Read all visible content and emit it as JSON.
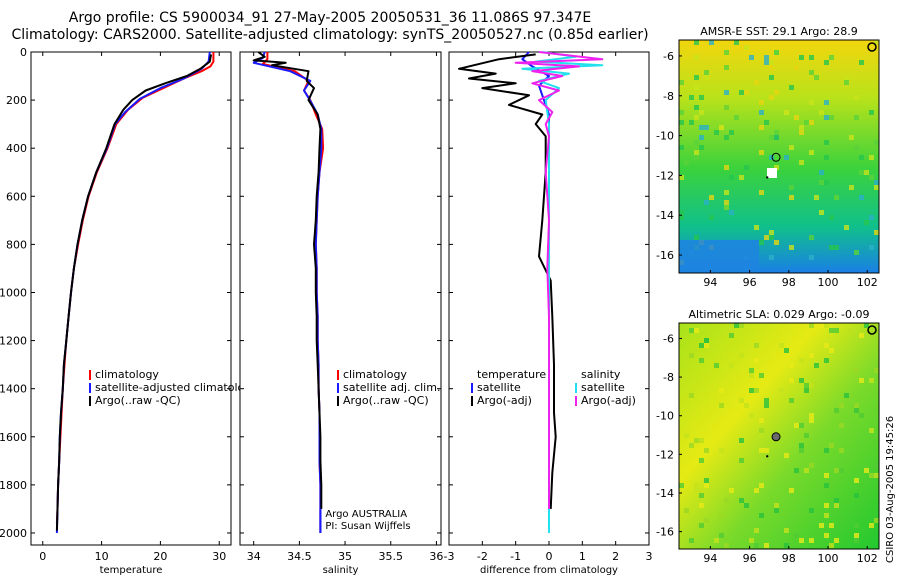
{
  "header": {
    "line1": "Argo profile: CS 5900034_91 27-May-2005 20050531_36 11.086S 97.347E",
    "line2": "Climatology: CARS2000. Satellite-adjusted climatology: synTS_20050527.nc (0.85d earlier)"
  },
  "colors": {
    "climatology": "#ff0000",
    "satellite": "#1a1aff",
    "argo": "#000000",
    "sal_sat": "#22e0ee",
    "sal_argo": "#ee22ee"
  },
  "chart_data": [
    {
      "id": "temperature",
      "type": "line",
      "xlabel": "temperature",
      "ylabel": "",
      "xlim": [
        -2,
        32
      ],
      "ylim": [
        2050,
        0
      ],
      "xticks": [
        0,
        10,
        20,
        30
      ],
      "yticks": [
        0,
        200,
        400,
        600,
        800,
        1000,
        1200,
        1400,
        1600,
        1800,
        2000
      ],
      "legend": [
        "climatology",
        "satellite-adjusted climatology",
        "Argo(..raw -QC)"
      ],
      "series": [
        {
          "name": "climatology",
          "color": "#ff0000",
          "points": [
            [
              29.0,
              0
            ],
            [
              29.0,
              40
            ],
            [
              28.5,
              60
            ],
            [
              27.0,
              80
            ],
            [
              24.0,
              110
            ],
            [
              20.5,
              150
            ],
            [
              17.0,
              190
            ],
            [
              14.5,
              240
            ],
            [
              12.5,
              300
            ],
            [
              11.0,
              400
            ],
            [
              9.2,
              500
            ],
            [
              7.8,
              600
            ],
            [
              6.8,
              700
            ],
            [
              6.0,
              800
            ],
            [
              5.3,
              900
            ],
            [
              4.8,
              1000
            ],
            [
              4.4,
              1100
            ],
            [
              4.0,
              1200
            ],
            [
              3.7,
              1300
            ],
            [
              3.4,
              1400
            ],
            [
              3.2,
              1500
            ],
            [
              3.0,
              1600
            ],
            [
              2.8,
              1700
            ],
            [
              2.6,
              1800
            ],
            [
              2.5,
              1900
            ],
            [
              2.4,
              1960
            ]
          ]
        },
        {
          "name": "satellite",
          "color": "#1a1aff",
          "points": [
            [
              28.4,
              0
            ],
            [
              28.2,
              40
            ],
            [
              27.0,
              70
            ],
            [
              24.0,
              110
            ],
            [
              20.0,
              150
            ],
            [
              16.5,
              195
            ],
            [
              14.0,
              250
            ],
            [
              12.3,
              300
            ],
            [
              10.9,
              400
            ],
            [
              9.1,
              500
            ],
            [
              7.7,
              600
            ],
            [
              6.7,
              700
            ],
            [
              5.9,
              800
            ],
            [
              5.3,
              900
            ],
            [
              4.8,
              1000
            ],
            [
              4.4,
              1100
            ],
            [
              4.0,
              1200
            ],
            [
              3.6,
              1300
            ],
            [
              3.4,
              1400
            ],
            [
              3.1,
              1500
            ],
            [
              2.9,
              1600
            ],
            [
              2.8,
              1700
            ],
            [
              2.6,
              1800
            ],
            [
              2.5,
              1900
            ],
            [
              2.4,
              2000
            ]
          ]
        },
        {
          "name": "argo",
          "color": "#000000",
          "points": [
            [
              28.6,
              10
            ],
            [
              28.4,
              40
            ],
            [
              26.8,
              70
            ],
            [
              24.5,
              100
            ],
            [
              20.8,
              130
            ],
            [
              17.5,
              160
            ],
            [
              15.2,
              200
            ],
            [
              13.7,
              240
            ],
            [
              12.2,
              300
            ],
            [
              10.8,
              400
            ],
            [
              9.1,
              500
            ],
            [
              7.7,
              600
            ],
            [
              6.7,
              700
            ],
            [
              5.9,
              800
            ],
            [
              5.3,
              900
            ],
            [
              4.8,
              1000
            ],
            [
              4.4,
              1100
            ],
            [
              4.0,
              1200
            ],
            [
              3.6,
              1300
            ],
            [
              3.4,
              1400
            ],
            [
              3.1,
              1500
            ],
            [
              2.9,
              1600
            ],
            [
              2.8,
              1700
            ],
            [
              2.6,
              1800
            ],
            [
              2.5,
              1900
            ],
            [
              2.4,
              1990
            ]
          ]
        }
      ]
    },
    {
      "id": "salinity",
      "type": "line",
      "xlabel": "salinity",
      "xlim": [
        33.85,
        36.05
      ],
      "ylim": [
        2050,
        0
      ],
      "xticks": [
        34,
        34.5,
        35,
        35.5,
        36
      ],
      "legend": [
        "climatology",
        "satellite adj. clim.",
        "Argo(..raw -QC)"
      ],
      "annotations": [
        "Argo AUSTRALIA",
        "PI: Susan Wijffels"
      ],
      "series": [
        {
          "name": "climatology",
          "color": "#ff0000",
          "points": [
            [
              34.15,
              0
            ],
            [
              34.15,
              30
            ],
            [
              34.1,
              50
            ],
            [
              34.45,
              80
            ],
            [
              34.6,
              120
            ],
            [
              34.55,
              160
            ],
            [
              34.62,
              200
            ],
            [
              34.68,
              260
            ],
            [
              34.75,
              320
            ],
            [
              34.76,
              400
            ],
            [
              34.72,
              500
            ],
            [
              34.7,
              600
            ],
            [
              34.69,
              700
            ],
            [
              34.68,
              800
            ],
            [
              34.69,
              900
            ],
            [
              34.69,
              1000
            ],
            [
              34.7,
              1100
            ],
            [
              34.7,
              1200
            ],
            [
              34.71,
              1300
            ],
            [
              34.71,
              1400
            ],
            [
              34.72,
              1500
            ],
            [
              34.72,
              1600
            ],
            [
              34.72,
              1700
            ],
            [
              34.73,
              1800
            ],
            [
              34.73,
              1900
            ],
            [
              34.73,
              2000
            ]
          ]
        },
        {
          "name": "satellite",
          "color": "#1a1aff",
          "points": [
            [
              34.12,
              0
            ],
            [
              34.1,
              25
            ],
            [
              34.0,
              45
            ],
            [
              34.4,
              80
            ],
            [
              34.62,
              120
            ],
            [
              34.55,
              160
            ],
            [
              34.63,
              210
            ],
            [
              34.7,
              260
            ],
            [
              34.74,
              320
            ],
            [
              34.74,
              400
            ],
            [
              34.72,
              500
            ],
            [
              34.7,
              600
            ],
            [
              34.69,
              700
            ],
            [
              34.68,
              800
            ],
            [
              34.69,
              900
            ],
            [
              34.69,
              1000
            ],
            [
              34.7,
              1100
            ],
            [
              34.7,
              1200
            ],
            [
              34.71,
              1300
            ],
            [
              34.71,
              1400
            ],
            [
              34.72,
              1500
            ],
            [
              34.72,
              1600
            ],
            [
              34.72,
              1700
            ],
            [
              34.73,
              1800
            ],
            [
              34.73,
              1900
            ],
            [
              34.73,
              2000
            ]
          ]
        },
        {
          "name": "argo",
          "color": "#000000",
          "points": [
            [
              34.05,
              0
            ],
            [
              34.12,
              20
            ],
            [
              34.0,
              35
            ],
            [
              34.35,
              45
            ],
            [
              34.2,
              55
            ],
            [
              34.6,
              80
            ],
            [
              34.58,
              120
            ],
            [
              34.66,
              150
            ],
            [
              34.6,
              200
            ],
            [
              34.7,
              260
            ],
            [
              34.73,
              320
            ],
            [
              34.72,
              400
            ],
            [
              34.71,
              500
            ],
            [
              34.69,
              600
            ],
            [
              34.68,
              700
            ],
            [
              34.66,
              800
            ],
            [
              34.68,
              900
            ],
            [
              34.68,
              1000
            ],
            [
              34.69,
              1100
            ],
            [
              34.69,
              1200
            ],
            [
              34.7,
              1300
            ],
            [
              34.71,
              1400
            ],
            [
              34.72,
              1500
            ],
            [
              34.73,
              1600
            ],
            [
              34.73,
              1700
            ],
            [
              34.74,
              1800
            ],
            [
              34.74,
              1900
            ]
          ]
        }
      ]
    },
    {
      "id": "difference",
      "type": "line",
      "xlabel": "difference from climatology",
      "xlim": [
        -3,
        3
      ],
      "ylim": [
        2050,
        0
      ],
      "xticks": [
        -3,
        -2,
        -1,
        0,
        1,
        2,
        3
      ],
      "legend": [
        "temperature",
        "satellite",
        "Argo(-adj)",
        "salinity",
        "satellite",
        "Argo(-adj)"
      ],
      "series": [
        {
          "name": "temperature satellite",
          "color": "#1a1aff",
          "points": [
            [
              -0.6,
              0
            ],
            [
              -0.8,
              30
            ],
            [
              -0.5,
              60
            ],
            [
              0.0,
              100
            ],
            [
              -0.3,
              140
            ],
            [
              -0.2,
              180
            ],
            [
              0.0,
              260
            ],
            [
              0.0,
              400
            ],
            [
              0.0,
              600
            ],
            [
              0.0,
              800
            ],
            [
              0.0,
              1000
            ],
            [
              0.0,
              1200
            ],
            [
              0.0,
              1400
            ],
            [
              0.0,
              1600
            ],
            [
              0.0,
              1800
            ],
            [
              0.0,
              2000
            ]
          ]
        },
        {
          "name": "temperature Argo",
          "color": "#000000",
          "points": [
            [
              -0.4,
              10
            ],
            [
              -1.5,
              30
            ],
            [
              -2.7,
              70
            ],
            [
              -1.6,
              90
            ],
            [
              -2.4,
              110
            ],
            [
              -1.0,
              130
            ],
            [
              -2.0,
              150
            ],
            [
              -0.6,
              180
            ],
            [
              -1.2,
              220
            ],
            [
              -0.2,
              260
            ],
            [
              -0.4,
              300
            ],
            [
              -0.1,
              350
            ],
            [
              -0.1,
              500
            ],
            [
              -0.2,
              700
            ],
            [
              -0.3,
              850
            ],
            [
              0.05,
              950
            ],
            [
              0.1,
              1100
            ],
            [
              0.15,
              1300
            ],
            [
              0.15,
              1500
            ],
            [
              0.2,
              1600
            ],
            [
              0.1,
              1750
            ],
            [
              0.05,
              1900
            ]
          ]
        },
        {
          "name": "salinity satellite",
          "color": "#22e0ee",
          "points": [
            [
              -0.2,
              0
            ],
            [
              0.8,
              20
            ],
            [
              -0.4,
              40
            ],
            [
              1.6,
              55
            ],
            [
              -0.8,
              70
            ],
            [
              0.6,
              90
            ],
            [
              -0.3,
              120
            ],
            [
              0.3,
              150
            ],
            [
              -0.1,
              200
            ],
            [
              0.0,
              300
            ],
            [
              0.0,
              600
            ],
            [
              0.0,
              1000
            ],
            [
              0.0,
              1400
            ],
            [
              0.0,
              1800
            ],
            [
              0.0,
              2000
            ]
          ]
        },
        {
          "name": "salinity Argo",
          "color": "#ee22ee",
          "points": [
            [
              -0.3,
              0
            ],
            [
              1.6,
              30
            ],
            [
              -1.0,
              45
            ],
            [
              0.9,
              60
            ],
            [
              -0.5,
              80
            ],
            [
              0.4,
              100
            ],
            [
              -0.5,
              130
            ],
            [
              0.3,
              160
            ],
            [
              -0.3,
              200
            ],
            [
              0.1,
              250
            ],
            [
              -0.1,
              300
            ],
            [
              0.0,
              350
            ],
            [
              -0.1,
              500
            ],
            [
              0.0,
              700
            ],
            [
              -0.05,
              900
            ],
            [
              0.0,
              1100
            ],
            [
              0.0,
              1500
            ],
            [
              0.0,
              1900
            ]
          ]
        }
      ]
    }
  ],
  "maps": [
    {
      "id": "sst-map",
      "title": "AMSR-E SST: 29.1 Argo: 28.9",
      "xticks": [
        "94",
        "96",
        "98",
        "100",
        "102"
      ],
      "yticks": [
        "-6",
        "-8",
        "-10",
        "-12",
        "-14",
        "-16"
      ],
      "xlim": [
        92.4,
        102.6
      ],
      "ylim": [
        -16.9,
        -5.2
      ],
      "float": [
        97.35,
        -11.09
      ]
    },
    {
      "id": "sla-map",
      "title": "Altimetric SLA: 0.029 Argo: -0.09",
      "xticks": [
        "94",
        "96",
        "98",
        "100",
        "102"
      ],
      "yticks": [
        "-6",
        "-8",
        "-10",
        "-12",
        "-14",
        "-16"
      ],
      "xlim": [
        92.4,
        102.6
      ],
      "ylim": [
        -16.9,
        -5.2
      ],
      "float": [
        97.35,
        -11.09
      ]
    }
  ],
  "footer": {
    "stamp": "CSIRO 03-Aug-2005 19:45:26"
  }
}
